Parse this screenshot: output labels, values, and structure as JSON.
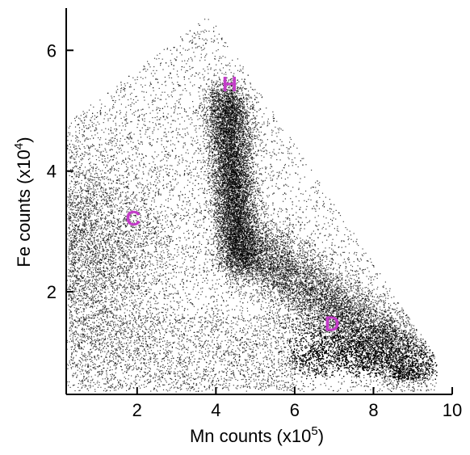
{
  "chart_data": {
    "type": "scatter",
    "title": "",
    "xlabel": "Mn counts (x10",
    "xlabel_exp": "5",
    "xlabel_close": ")",
    "ylabel": "Fe counts (x10",
    "ylabel_exp": "4",
    "ylabel_close": ")",
    "xlim": [
      0.2,
      10
    ],
    "ylim": [
      0.3,
      6.7
    ],
    "xticks": [
      2,
      4,
      6,
      8,
      10
    ],
    "yticks": [
      2,
      4,
      6
    ],
    "grid": false,
    "point_color": "#000000",
    "label_color": "#c33cc8",
    "clusters": [
      {
        "label": "H",
        "x": 4.45,
        "y": 3.6
      },
      {
        "label": "C",
        "x": 1.8,
        "y": 3.2
      },
      {
        "label": "D",
        "x": 7.2,
        "y": 1.0
      }
    ],
    "annotations": [
      {
        "text": "H",
        "x": 4.35,
        "y": 5.32
      },
      {
        "text": "C",
        "x": 1.9,
        "y": 3.1
      },
      {
        "text": "D",
        "x": 6.95,
        "y": 1.35
      }
    ]
  }
}
